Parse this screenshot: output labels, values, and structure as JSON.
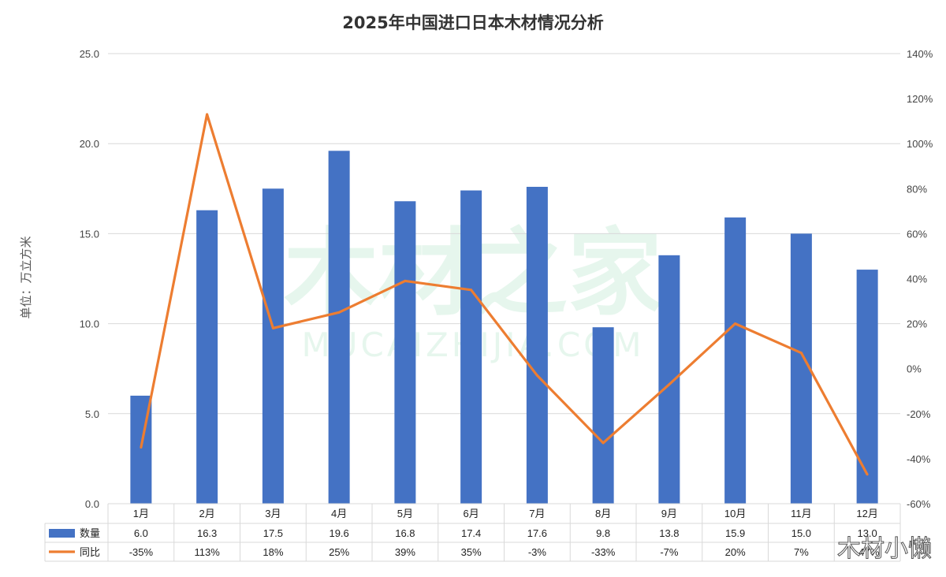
{
  "title": "2025年中国进口日本木材情况分析",
  "unit_label": "单位：万立方米",
  "watermark": {
    "main": "木材之家",
    "sub": "MUCAIZHIJIA.COM"
  },
  "signature": "木材小懒",
  "colors": {
    "bar": "#4472c4",
    "line": "#ed7d31",
    "grid": "#d9d9d9"
  },
  "chart_data": {
    "type": "bar",
    "title": "2025年中国进口日本木材情况分析",
    "categories": [
      "1月",
      "2月",
      "3月",
      "4月",
      "5月",
      "6月",
      "7月",
      "8月",
      "9月",
      "10月",
      "11月",
      "12月"
    ],
    "series": [
      {
        "name": "数量",
        "type": "bar",
        "axis": "left",
        "values": [
          6.0,
          16.3,
          17.5,
          19.6,
          16.8,
          17.4,
          17.6,
          9.8,
          13.8,
          15.9,
          15.0,
          13.0
        ],
        "labels": [
          "6.0",
          "16.3",
          "17.5",
          "19.6",
          "16.8",
          "17.4",
          "17.6",
          "9.8",
          "13.8",
          "15.9",
          "15.0",
          "13.0"
        ]
      },
      {
        "name": "同比",
        "type": "line",
        "axis": "right",
        "values": [
          -35,
          113,
          18,
          25,
          39,
          35,
          -3,
          -33,
          -7,
          20,
          7,
          -47
        ],
        "labels": [
          "-35%",
          "113%",
          "18%",
          "25%",
          "39%",
          "35%",
          "-3%",
          "-33%",
          "-7%",
          "20%",
          "7%",
          "-47%"
        ]
      }
    ],
    "y_left": {
      "label": "单位：万立方米",
      "range": [
        0,
        25
      ],
      "ticks": [
        "0.0",
        "5.0",
        "10.0",
        "15.0",
        "20.0",
        "25.0"
      ]
    },
    "y_right": {
      "range": [
        -60,
        140
      ],
      "ticks": [
        "-60%",
        "-40%",
        "-20%",
        "0%",
        "20%",
        "40%",
        "60%",
        "80%",
        "100%",
        "120%",
        "140%"
      ]
    },
    "grid": true,
    "legend": "data-table"
  }
}
